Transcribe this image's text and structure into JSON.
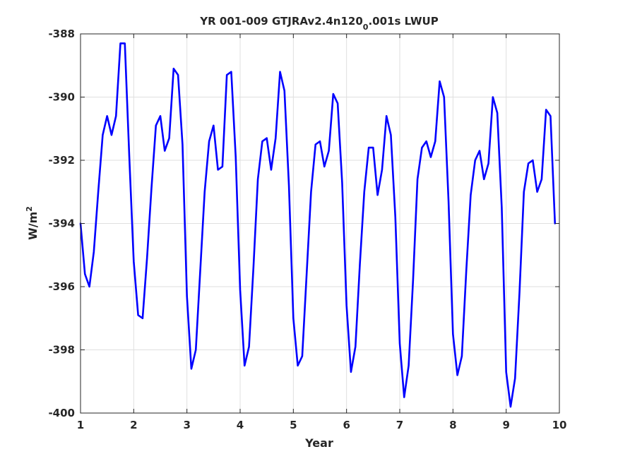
{
  "chart_data": {
    "type": "line",
    "title": {
      "main": "YR 001-009 GTJRAv2.4n120",
      "subscript": "0",
      "suffix": ".001s LWUP"
    },
    "xlabel": "Year",
    "ylabel": {
      "base": "W/m",
      "superscript": "2"
    },
    "xlim": [
      1,
      10
    ],
    "ylim": [
      -400,
      -388
    ],
    "xticks": [
      1,
      2,
      3,
      4,
      5,
      6,
      7,
      8,
      9,
      10
    ],
    "xtick_labels": [
      "1",
      "2",
      "3",
      "4",
      "5",
      "6",
      "7",
      "8",
      "9",
      "10"
    ],
    "yticks": [
      -400,
      -398,
      -396,
      -394,
      -392,
      -390,
      -388
    ],
    "ytick_labels": [
      "-400",
      "-398",
      "-396",
      "-394",
      "-392",
      "-390",
      "-388"
    ],
    "grid": true,
    "legend": "none",
    "series": [
      {
        "color": "#0000ff",
        "x": [
          1.0,
          1.083,
          1.167,
          1.25,
          1.333,
          1.417,
          1.5,
          1.583,
          1.667,
          1.75,
          1.833,
          1.917,
          2.0,
          2.083,
          2.167,
          2.25,
          2.333,
          2.417,
          2.5,
          2.583,
          2.667,
          2.75,
          2.833,
          2.917,
          3.0,
          3.083,
          3.167,
          3.25,
          3.333,
          3.417,
          3.5,
          3.583,
          3.667,
          3.75,
          3.833,
          3.917,
          4.0,
          4.083,
          4.167,
          4.25,
          4.333,
          4.417,
          4.5,
          4.583,
          4.667,
          4.75,
          4.833,
          4.917,
          5.0,
          5.083,
          5.167,
          5.25,
          5.333,
          5.417,
          5.5,
          5.583,
          5.667,
          5.75,
          5.833,
          5.917,
          6.0,
          6.083,
          6.167,
          6.25,
          6.333,
          6.417,
          6.5,
          6.583,
          6.667,
          6.75,
          6.833,
          6.917,
          7.0,
          7.083,
          7.167,
          7.25,
          7.333,
          7.417,
          7.5,
          7.583,
          7.667,
          7.75,
          7.833,
          7.917,
          8.0,
          8.083,
          8.167,
          8.25,
          8.333,
          8.417,
          8.5,
          8.583,
          8.667,
          8.75,
          8.833,
          8.917,
          9.0,
          9.083,
          9.167,
          9.25,
          9.333,
          9.417,
          9.5,
          9.583,
          9.667,
          9.75,
          9.833,
          9.917
        ],
        "y": [
          -394.0,
          -395.6,
          -396.0,
          -394.9,
          -393.0,
          -391.2,
          -390.6,
          -391.2,
          -390.6,
          -388.3,
          -388.3,
          -391.9,
          -395.2,
          -396.9,
          -397.0,
          -395.1,
          -392.9,
          -390.9,
          -390.6,
          -391.7,
          -391.3,
          -389.1,
          -389.3,
          -391.5,
          -396.3,
          -398.6,
          -398.0,
          -395.5,
          -393.0,
          -391.4,
          -390.9,
          -392.3,
          -392.2,
          -389.3,
          -389.2,
          -391.9,
          -396.1,
          -398.5,
          -397.9,
          -395.4,
          -392.6,
          -391.4,
          -391.3,
          -392.3,
          -391.3,
          -389.2,
          -389.8,
          -392.8,
          -397.0,
          -398.5,
          -398.2,
          -395.6,
          -393.0,
          -391.5,
          -391.4,
          -392.2,
          -391.7,
          -389.9,
          -390.2,
          -392.7,
          -396.6,
          -398.7,
          -397.9,
          -395.3,
          -393.0,
          -391.6,
          -391.6,
          -393.1,
          -392.3,
          -390.6,
          -391.2,
          -393.8,
          -397.8,
          -399.5,
          -398.5,
          -395.8,
          -392.6,
          -391.6,
          -391.4,
          -391.9,
          -391.4,
          -389.5,
          -390.0,
          -393.3,
          -397.5,
          -398.8,
          -398.2,
          -395.5,
          -393.1,
          -392.0,
          -391.7,
          -392.6,
          -392.1,
          -390.0,
          -390.5,
          -393.5,
          -398.7,
          -399.8,
          -398.9,
          -396.2,
          -393.0,
          -392.1,
          -392.0,
          -393.0,
          -392.6,
          -390.4,
          -390.6,
          -394.0
        ]
      }
    ]
  }
}
